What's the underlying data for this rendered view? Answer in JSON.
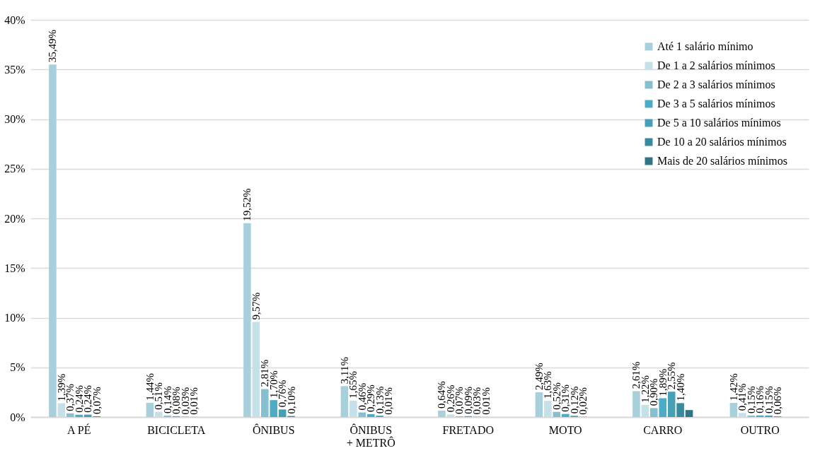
{
  "chart_data": {
    "type": "bar",
    "categories": [
      "A PÉ",
      "BICICLETA",
      "ÔNIBUS",
      "ÔNIBUS\n+ METRÔ",
      "FRETADO",
      "MOTO",
      "CARRO",
      "OUTRO"
    ],
    "series": [
      {
        "name": "Até 1 salário mínimo",
        "color": "#a8d0dc",
        "values": [
          35.49,
          1.44,
          19.52,
          3.11,
          0.64,
          2.49,
          2.61,
          1.42
        ],
        "value_labels": [
          "35,49%",
          "1,44%",
          "19,52%",
          "3,11%",
          "0,64%",
          "2,49%",
          "2,61%",
          "1,42%"
        ]
      },
      {
        "name": "De 1 a 2 salários mínimos",
        "color": "#c5e0e8",
        "values": [
          1.39,
          0.51,
          9.57,
          1.65,
          0.26,
          1.63,
          1.22,
          0.41
        ],
        "value_labels": [
          "1,39%",
          "0,51%",
          "9,57%",
          "1,65%",
          "0,26%",
          "1,63%",
          "1,22%",
          "0,41%"
        ]
      },
      {
        "name": "De 2 a 3 salários mínimos",
        "color": "#86c0d0",
        "values": [
          0.37,
          0.14,
          2.81,
          0.46,
          0.07,
          0.52,
          0.9,
          0.15
        ],
        "value_labels": [
          "0,37%",
          "0,14%",
          "2,81%",
          "0,46%",
          "0,07%",
          "0,52%",
          "0,90%",
          "0,15%"
        ]
      },
      {
        "name": "De 3 a 5 salários mínimos",
        "color": "#4bacc6",
        "values": [
          0.24,
          0.08,
          1.7,
          0.29,
          0.09,
          0.31,
          1.89,
          0.16
        ],
        "value_labels": [
          "0,24%",
          "0,08%",
          "1,70%",
          "0,29%",
          "0,09%",
          "0,31%",
          "1,89%",
          "0,16%"
        ]
      },
      {
        "name": "De 5 a 10 salários mínimos",
        "color": "#45a0b5",
        "values": [
          0.24,
          0.03,
          0.76,
          0.13,
          0.03,
          0.12,
          2.55,
          0.15
        ],
        "value_labels": [
          "0,24%",
          "0,03%",
          "0,76%",
          "0,13%",
          "0,03%",
          "0,12%",
          "2,55%",
          "0,15%"
        ]
      },
      {
        "name": "De 10 a 20 salários mínimos",
        "color": "#3a8a9e",
        "values": [
          0.07,
          0.01,
          0.1,
          0.01,
          0.01,
          0.02,
          1.4,
          0.06
        ],
        "value_labels": [
          "0,07%",
          "0,01%",
          "0,10%",
          "0,01%",
          "0,01%",
          "0,02%",
          "1,40%",
          "0,06%"
        ]
      },
      {
        "name": "Mais de 20 salários mínimos",
        "color": "#2f7585",
        "values": [
          0,
          0,
          0,
          0,
          0,
          0,
          0.7,
          0
        ]
      }
    ],
    "ylim": [
      0,
      40
    ],
    "yticks": [
      {
        "value": 0,
        "label": "0%"
      },
      {
        "value": 5,
        "label": "5%"
      },
      {
        "value": 10,
        "label": "10%"
      },
      {
        "value": 15,
        "label": "15%"
      },
      {
        "value": 20,
        "label": "20%"
      },
      {
        "value": 25,
        "label": "25%"
      },
      {
        "value": 30,
        "label": "30%"
      },
      {
        "value": 35,
        "label": "35%"
      },
      {
        "value": 40,
        "label": "40%"
      }
    ],
    "grid": "y",
    "legend": "top right"
  }
}
